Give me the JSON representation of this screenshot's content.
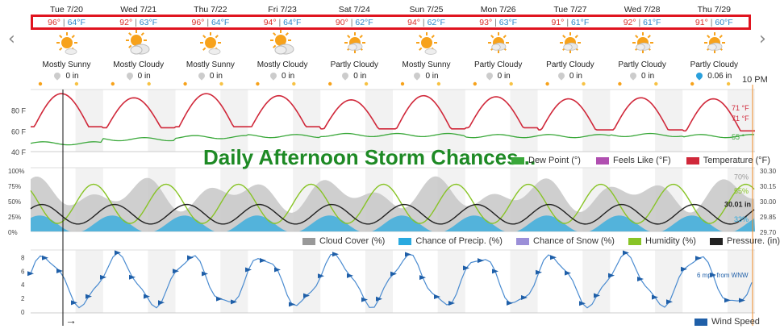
{
  "nav": {
    "prev_icon": "chevron-left-icon",
    "next_icon": "chevron-right-icon",
    "prev_glyph": "‹",
    "next_glyph": "›"
  },
  "days": [
    {
      "name": "Tue 7/20",
      "hi": "96°",
      "lo": "64°F",
      "icon": "mostly-sunny-icon",
      "condition": "Mostly Sunny",
      "precip": "0 in",
      "wet": false
    },
    {
      "name": "Wed 7/21",
      "hi": "92°",
      "lo": "63°F",
      "icon": "mostly-cloudy-icon",
      "condition": "Mostly Cloudy",
      "precip": "0 in",
      "wet": false
    },
    {
      "name": "Thu 7/22",
      "hi": "96°",
      "lo": "64°F",
      "icon": "mostly-sunny-icon",
      "condition": "Mostly Sunny",
      "precip": "0 in",
      "wet": false
    },
    {
      "name": "Fri 7/23",
      "hi": "94°",
      "lo": "64°F",
      "icon": "mostly-cloudy-icon",
      "condition": "Mostly Cloudy",
      "precip": "0 in",
      "wet": false
    },
    {
      "name": "Sat 7/24",
      "hi": "90°",
      "lo": "62°F",
      "icon": "partly-cloudy-icon",
      "condition": "Partly Cloudy",
      "precip": "0 in",
      "wet": false
    },
    {
      "name": "Sun 7/25",
      "hi": "94°",
      "lo": "62°F",
      "icon": "mostly-sunny-icon",
      "condition": "Mostly Sunny",
      "precip": "0 in",
      "wet": false
    },
    {
      "name": "Mon 7/26",
      "hi": "93°",
      "lo": "63°F",
      "icon": "partly-cloudy-icon",
      "condition": "Partly Cloudy",
      "precip": "0 in",
      "wet": false
    },
    {
      "name": "Tue 7/27",
      "hi": "91°",
      "lo": "61°F",
      "icon": "partly-cloudy-icon",
      "condition": "Partly Cloudy",
      "precip": "0 in",
      "wet": false
    },
    {
      "name": "Wed 7/28",
      "hi": "92°",
      "lo": "61°F",
      "icon": "partly-cloudy-icon",
      "condition": "Partly Cloudy",
      "precip": "0 in",
      "wet": false
    },
    {
      "name": "Thu 7/29",
      "hi": "91°",
      "lo": "60°F",
      "icon": "partly-cloudy-icon",
      "condition": "Partly Cloudy",
      "precip": "0.06 in",
      "wet": true
    }
  ],
  "temp_sep": "|",
  "now_label": "10 PM",
  "overlay_title": "Daily Afternoon Storm Chances...",
  "colors": {
    "temperature": "#d0283a",
    "dew_point": "#3aa83a",
    "feels_like": "#b04fb0",
    "cloud_cover": "#999999",
    "precip_chance": "#29a9df",
    "snow_chance": "#9b8fd8",
    "humidity": "#88c426",
    "pressure": "#222222",
    "wind": "#1f5fa8"
  },
  "temp_chart": {
    "y_ticks": [
      "80 F",
      "60 F",
      "40 F"
    ],
    "legend": [
      "Dew Point (°)",
      "Feels Like (°F)",
      "Temperature (°F)"
    ],
    "end_labels": {
      "temperature": "71 °F",
      "feels_like": "71 °F",
      "dew_point": "55 °"
    }
  },
  "mid_chart": {
    "y_ticks_left": [
      "100%",
      "75%",
      "50%",
      "25%",
      "0%"
    ],
    "y_ticks_right": [
      "30.30",
      "30.15",
      "30.00",
      "29.85",
      "29.70"
    ],
    "legend": [
      "Cloud Cover (%)",
      "Chance of Precip. (%)",
      "Chance of Snow (%)",
      "Humidity (%)",
      "Pressure. (in)"
    ],
    "end_labels": {
      "cloud": "70%",
      "humidity": "55%",
      "pressure": "30.01 in",
      "precip": "33%"
    }
  },
  "wind_chart": {
    "y_ticks": [
      "8",
      "6",
      "4",
      "2",
      "0"
    ],
    "legend": "Wind Speed",
    "end_label": "6 mph from WNW",
    "arrow_glyph": "→"
  },
  "chart_data": [
    {
      "type": "line",
      "title": "",
      "ylabel": "°F",
      "ylim": [
        40,
        100
      ],
      "x_days": [
        "Tue 7/20",
        "Wed 7/21",
        "Thu 7/22",
        "Fri 7/23",
        "Sat 7/24",
        "Sun 7/25",
        "Mon 7/26",
        "Tue 7/27",
        "Wed 7/28",
        "Thu 7/29"
      ],
      "series": [
        {
          "name": "Temperature (°F)",
          "daily_high": [
            96,
            92,
            96,
            94,
            90,
            94,
            93,
            91,
            92,
            91
          ],
          "daily_low": [
            64,
            63,
            64,
            64,
            62,
            62,
            63,
            61,
            61,
            60
          ],
          "current": 71
        },
        {
          "name": "Feels Like (°F)",
          "current": 71
        },
        {
          "name": "Dew Point (°)",
          "daily": [
            48,
            52,
            54,
            55,
            56,
            56,
            55,
            55,
            56,
            55
          ],
          "current": 55
        }
      ]
    },
    {
      "type": "area",
      "title": "",
      "ylim": [
        0,
        100
      ],
      "y2lim": [
        29.7,
        30.3
      ],
      "series": [
        {
          "name": "Cloud Cover (%)",
          "current": 70
        },
        {
          "name": "Chance of Precip. (%)",
          "current": 33
        },
        {
          "name": "Humidity (%)",
          "current": 55
        },
        {
          "name": "Pressure. (in)",
          "current": 30.01
        }
      ]
    },
    {
      "type": "line",
      "title": "",
      "ylim": [
        0,
        9
      ],
      "series": [
        {
          "name": "Wind Speed",
          "current": 6,
          "direction": "WNW"
        }
      ]
    }
  ]
}
